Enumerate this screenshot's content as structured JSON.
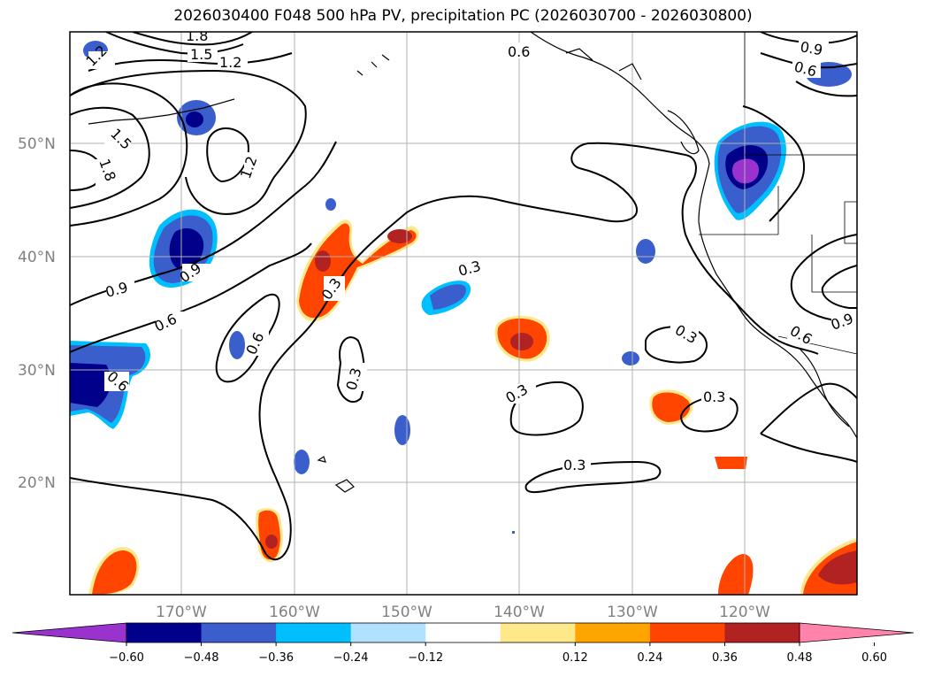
{
  "title": "2026030400 F048 500 hPa PV, precipitation PC (2026030700 - 2026030800)",
  "map": {
    "lat_labels": [
      "50°N",
      "40°N",
      "30°N",
      "20°N"
    ],
    "lon_labels": [
      "170°W",
      "160°W",
      "150°W",
      "140°W",
      "130°W",
      "120°W"
    ],
    "grid": true,
    "contour_field": "500 hPa PV",
    "contour_labels": [
      "1.8",
      "1.5",
      "1.2",
      "1.2",
      "1.5",
      "1.8",
      "1.2",
      "0.9",
      "0.9",
      "0.6",
      "0.6",
      "0.3",
      "0.3",
      "0.3",
      "0.3",
      "0.3",
      "0.3",
      "0.3",
      "0.6",
      "0.9",
      "0.6",
      "0.9",
      "0.6",
      "0.6"
    ]
  },
  "colorbar": {
    "levels": [
      "−0.60",
      "−0.48",
      "−0.36",
      "−0.24",
      "−0.12",
      "0.12",
      "0.24",
      "0.36",
      "0.48",
      "0.60"
    ],
    "colors": [
      "#9a32cd",
      "#00008b",
      "#3a5fcd",
      "#00bfff",
      "#b0e2ff",
      "#ffffff",
      "#ffe88a",
      "#ffa500",
      "#ff4500",
      "#b22222",
      "#ff83aa"
    ],
    "extend": "both"
  },
  "colors": {
    "neg_1": "#b0e2ff",
    "neg_2": "#00bfff",
    "neg_3": "#3a5fcd",
    "neg_4": "#00008b",
    "neg_5": "#9a32cd",
    "pos_1": "#ffe88a",
    "pos_2": "#ffa500",
    "pos_3": "#ff4500",
    "pos_4": "#b22222",
    "pos_5": "#ff83aa"
  }
}
